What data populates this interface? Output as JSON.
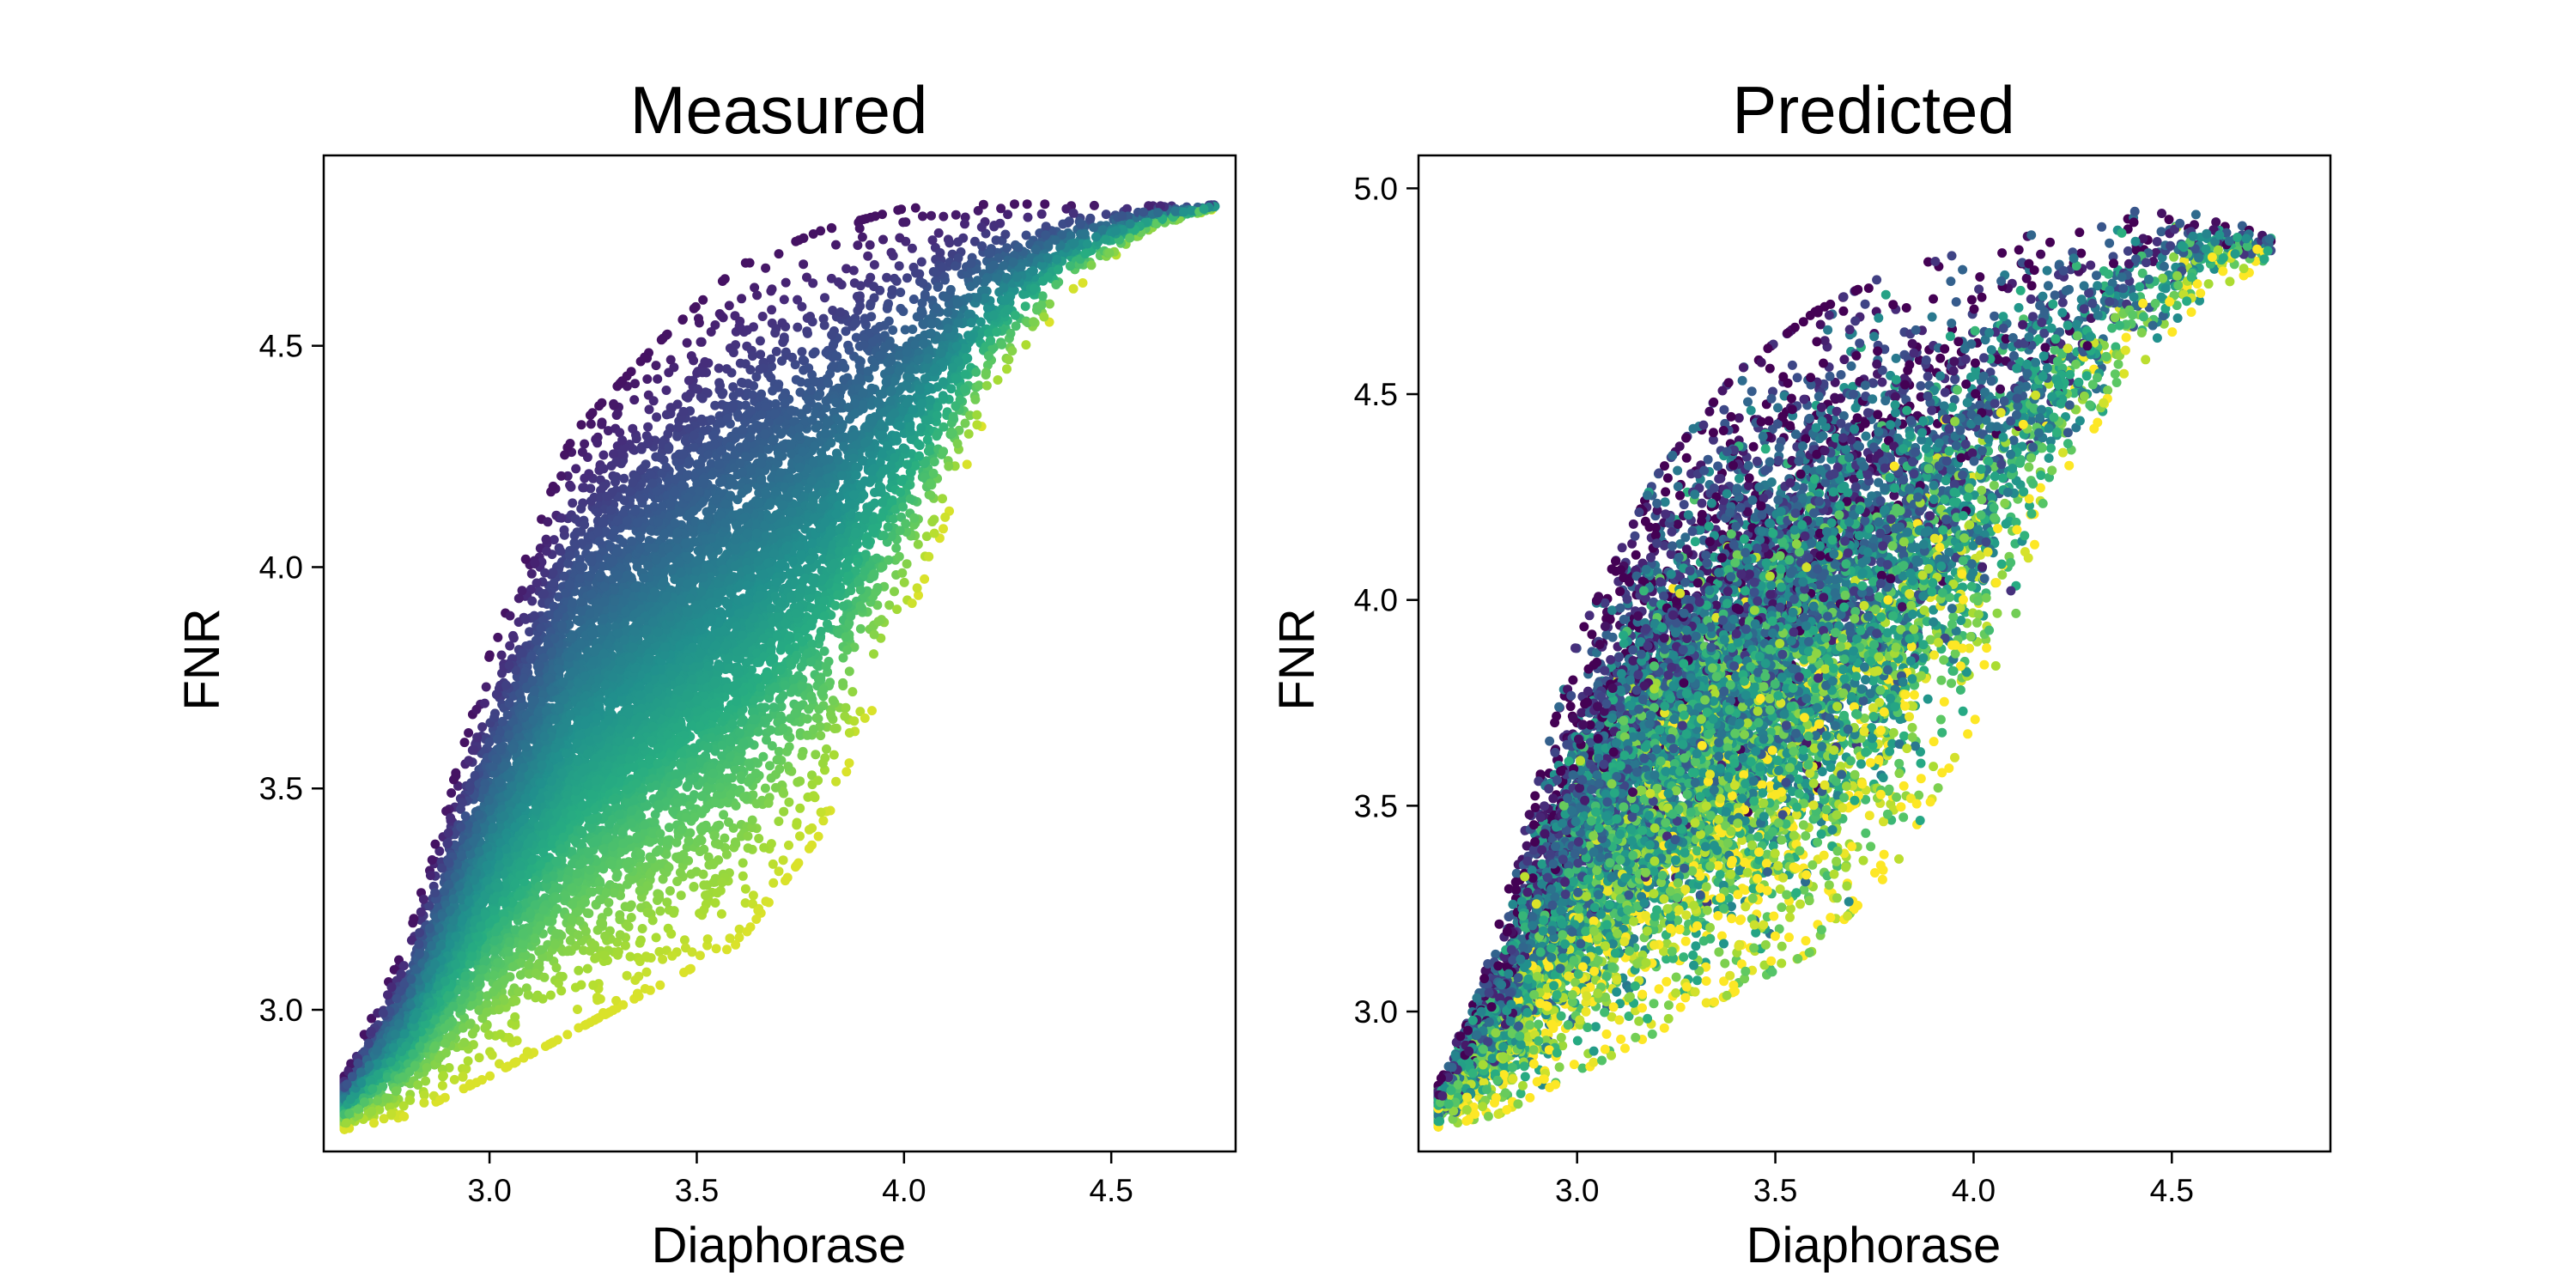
{
  "chart_data": [
    {
      "type": "scatter",
      "title": "Measured",
      "xlabel": "Diaphorase",
      "ylabel": "FNR",
      "xlim": [
        2.6,
        4.8
      ],
      "ylim": [
        2.68,
        4.93
      ],
      "xticks": [
        "3.0",
        "3.5",
        "4.0",
        "4.5"
      ],
      "yticks": [
        "3.0",
        "3.5",
        "4.0",
        "4.5"
      ],
      "grid": false,
      "legend": "none",
      "colormap": "viridis",
      "point_color": "value of (FNR - Diaphorase), dark purple for high, yellow for low",
      "clip_max_y": 4.82,
      "approx_points": 12000,
      "density_envelope": [
        {
          "x": 2.65,
          "lower": 2.73,
          "upper": 2.85
        },
        {
          "x": 2.8,
          "lower": 2.76,
          "upper": 3.15
        },
        {
          "x": 3.0,
          "lower": 2.85,
          "upper": 3.8
        },
        {
          "x": 3.2,
          "lower": 2.95,
          "upper": 4.3
        },
        {
          "x": 3.4,
          "lower": 3.05,
          "upper": 4.5
        },
        {
          "x": 3.6,
          "lower": 3.15,
          "upper": 4.68
        },
        {
          "x": 3.8,
          "lower": 3.4,
          "upper": 4.76
        },
        {
          "x": 4.0,
          "lower": 3.85,
          "upper": 4.81
        },
        {
          "x": 4.2,
          "lower": 4.35,
          "upper": 4.82
        },
        {
          "x": 4.4,
          "lower": 4.62,
          "upper": 4.82
        },
        {
          "x": 4.6,
          "lower": 4.76,
          "upper": 4.82
        },
        {
          "x": 4.75,
          "lower": 4.81,
          "upper": 4.82
        }
      ]
    },
    {
      "type": "scatter",
      "title": "Predicted",
      "xlabel": "Diaphorase",
      "ylabel": "FNR",
      "xlim": [
        2.6,
        4.9
      ],
      "ylim": [
        2.66,
        5.08
      ],
      "xticks": [
        "3.0",
        "3.5",
        "4.0",
        "4.5"
      ],
      "yticks": [
        "3.0",
        "3.5",
        "4.0",
        "4.5",
        "5.0"
      ],
      "grid": false,
      "legend": "none",
      "colormap": "viridis",
      "point_color": "mixed viridis colors, broadly yellow-green toward the lower right, purple toward the upper left",
      "approx_points": 12000,
      "density_envelope": [
        {
          "x": 2.65,
          "lower": 2.72,
          "upper": 2.82
        },
        {
          "x": 2.8,
          "lower": 2.75,
          "upper": 3.2
        },
        {
          "x": 3.0,
          "lower": 2.85,
          "upper": 3.9
        },
        {
          "x": 3.2,
          "lower": 2.95,
          "upper": 4.3
        },
        {
          "x": 3.4,
          "lower": 3.05,
          "upper": 4.55
        },
        {
          "x": 3.6,
          "lower": 3.15,
          "upper": 4.7
        },
        {
          "x": 3.8,
          "lower": 3.35,
          "upper": 4.8
        },
        {
          "x": 4.0,
          "lower": 3.7,
          "upper": 4.85
        },
        {
          "x": 4.2,
          "lower": 4.2,
          "upper": 4.9
        },
        {
          "x": 4.4,
          "lower": 4.55,
          "upper": 4.95
        },
        {
          "x": 4.6,
          "lower": 4.75,
          "upper": 4.96
        },
        {
          "x": 4.75,
          "lower": 4.82,
          "upper": 4.9
        }
      ]
    }
  ]
}
